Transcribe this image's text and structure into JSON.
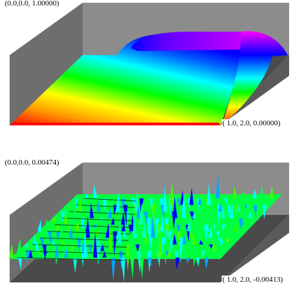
{
  "plots": [
    {
      "name": "solution-surface",
      "corner_min_label": "(0.0,0.0,  1.00000)",
      "corner_max_label": "( 1.0, 2.0,  0.00000)",
      "colormap": [
        "#ff0000",
        "#ff8000",
        "#ffff00",
        "#00ff00",
        "#00ffff",
        "#0000ff",
        "#ff00ff"
      ]
    },
    {
      "name": "error-surface",
      "corner_min_label": "(0.0,0.0,  0.00474)",
      "corner_max_label": "( 1.0, 2.0, -0.00413)",
      "colormap": [
        "#00ff40",
        "#00ffff",
        "#0000ff"
      ]
    }
  ],
  "colors": {
    "box_dark": "#4a4a4a",
    "box_mid": "#6e6e6e",
    "box_light": "#8c8c8c",
    "background": "#ffffff"
  }
}
